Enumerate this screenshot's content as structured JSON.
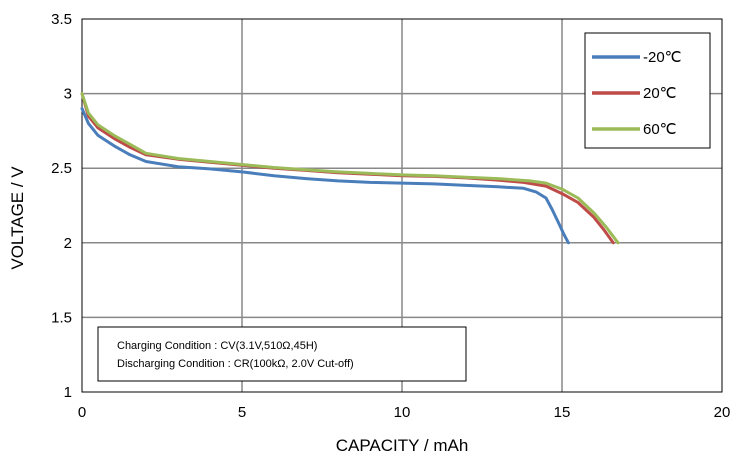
{
  "chart_data": {
    "type": "line",
    "title": "",
    "xlabel": "CAPACITY / mAh",
    "ylabel": "VOLTAGE / V",
    "xlim": [
      0,
      20
    ],
    "ylim": [
      1,
      3.5
    ],
    "xticks": [
      0,
      5,
      10,
      15,
      20
    ],
    "yticks": [
      1,
      1.5,
      2,
      2.5,
      3,
      3.5
    ],
    "xtick_labels": [
      "0",
      "5",
      "10",
      "15",
      "20"
    ],
    "ytick_labels": [
      "1",
      "1.5",
      "2",
      "2.5",
      "3",
      "3.5"
    ],
    "grid": true,
    "legend_position": "top-right",
    "annotation_lines": [
      "Charging Condition : CV(3.1V,510Ω,45H)",
      "Discharging Condition : CR(100kΩ, 2.0V Cut-off)"
    ],
    "series": [
      {
        "name": "-20℃",
        "color": "#4a7ebb",
        "x": [
          0,
          0.2,
          0.5,
          1,
          1.5,
          2,
          3,
          4,
          5,
          6,
          7,
          8,
          9,
          10,
          11,
          12,
          13,
          13.8,
          14.2,
          14.5,
          14.7,
          14.9,
          15.05,
          15.2
        ],
        "y": [
          2.9,
          2.8,
          2.72,
          2.65,
          2.59,
          2.545,
          2.51,
          2.495,
          2.475,
          2.45,
          2.43,
          2.415,
          2.405,
          2.4,
          2.395,
          2.385,
          2.375,
          2.365,
          2.34,
          2.3,
          2.22,
          2.13,
          2.06,
          2.0
        ]
      },
      {
        "name": "20℃",
        "color": "#be4b48",
        "x": [
          0,
          0.2,
          0.5,
          1,
          1.5,
          2,
          3,
          4,
          5,
          6,
          7,
          8,
          9,
          10,
          11,
          12,
          13,
          13.8,
          14.5,
          15,
          15.5,
          16,
          16.3,
          16.6
        ],
        "y": [
          3.0,
          2.85,
          2.77,
          2.7,
          2.64,
          2.59,
          2.56,
          2.54,
          2.52,
          2.5,
          2.485,
          2.47,
          2.46,
          2.45,
          2.445,
          2.435,
          2.42,
          2.405,
          2.38,
          2.33,
          2.27,
          2.17,
          2.09,
          2.0
        ]
      },
      {
        "name": "60℃",
        "color": "#9bbb59",
        "x": [
          0,
          0.2,
          0.5,
          1,
          1.5,
          2,
          3,
          4,
          5,
          6,
          7,
          8,
          9,
          10,
          11,
          12,
          13,
          14,
          14.5,
          15,
          15.5,
          16,
          16.4,
          16.75
        ],
        "y": [
          3.0,
          2.87,
          2.79,
          2.72,
          2.66,
          2.6,
          2.565,
          2.545,
          2.525,
          2.505,
          2.49,
          2.475,
          2.465,
          2.455,
          2.45,
          2.44,
          2.43,
          2.415,
          2.4,
          2.36,
          2.3,
          2.2,
          2.1,
          2.0
        ]
      }
    ]
  }
}
